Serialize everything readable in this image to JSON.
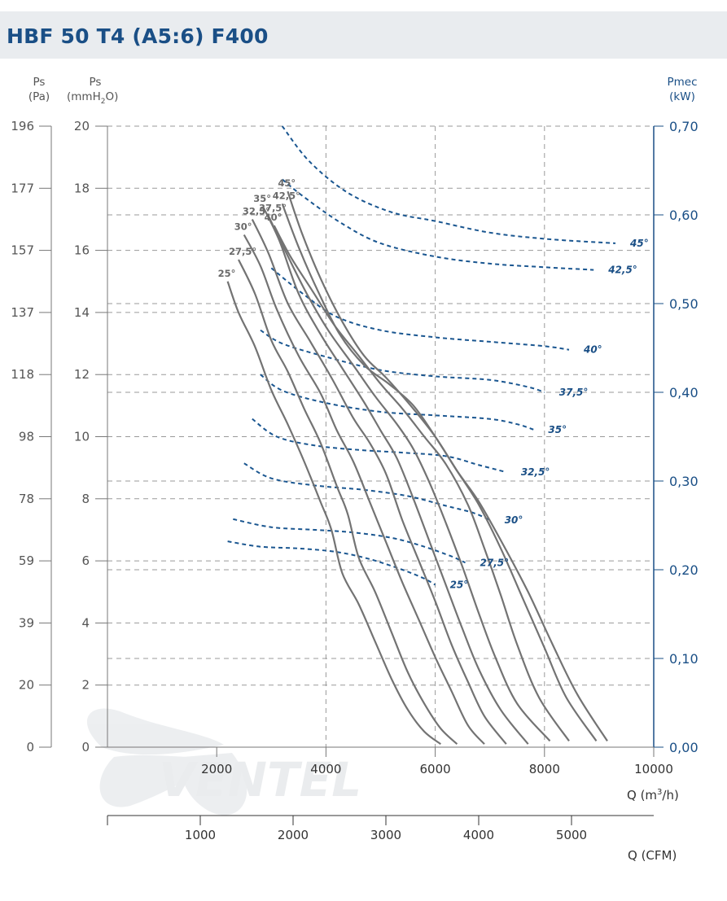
{
  "page": {
    "title": "HBF 50 T4 (A5:6) F400",
    "watermark": "VENTEL"
  },
  "axes": {
    "ps_pa_title": "Ps",
    "ps_pa_unit": "(Pa)",
    "ps_mm_title": "Ps",
    "ps_mm_unit": "(mmH",
    "ps_mm_unit_sub": "2",
    "ps_mm_unit_end": "O)",
    "pmec_title": "Pmec",
    "pmec_unit": "(kW)",
    "q_m3h_label": "Q (m",
    "q_m3h_sup": "3",
    "q_m3h_end": "/h)",
    "q_cfm_label": "Q (CFM)",
    "pa_ticks": [
      "196",
      "177",
      "157",
      "137",
      "118",
      "98",
      "78",
      "59",
      "39",
      "20",
      "0"
    ],
    "mm_ticks": [
      "20",
      "18",
      "16",
      "14",
      "12",
      "10",
      "8",
      "6",
      "4",
      "2",
      "0"
    ],
    "kw_ticks": [
      "0,70",
      "0,60",
      "0,50",
      "0,40",
      "0,30",
      "0,20",
      "0,10",
      "0,00"
    ],
    "m3h_ticks": [
      "2000",
      "4000",
      "6000",
      "8000",
      "10000"
    ],
    "cfm_ticks": [
      "1000",
      "2000",
      "3000",
      "4000",
      "5000"
    ]
  },
  "chart_data": {
    "type": "line",
    "x_unit": "m3/h",
    "xlim": [
      0,
      10000
    ],
    "ylim_mmH2O": [
      0,
      20
    ],
    "y2lim_kW": [
      0,
      0.7
    ],
    "grid": true,
    "pressure_series": [
      {
        "name": "25°",
        "x": [
          2200,
          2400,
          2700,
          3000,
          3300,
          3600,
          3900,
          4100,
          4300,
          4600,
          4900,
          5200,
          5500,
          5800,
          6100
        ],
        "y": [
          15.0,
          14.0,
          12.9,
          11.5,
          10.4,
          9.2,
          7.9,
          7.0,
          5.6,
          4.6,
          3.4,
          2.2,
          1.2,
          0.5,
          0.1
        ]
      },
      {
        "name": "27,5°",
        "x": [
          2400,
          2700,
          3000,
          3300,
          3600,
          3900,
          4200,
          4400,
          4600,
          4900,
          5200,
          5500,
          5800,
          6100,
          6400
        ],
        "y": [
          15.7,
          14.6,
          13.1,
          12.1,
          10.9,
          9.8,
          8.4,
          7.5,
          6.1,
          5.0,
          3.7,
          2.4,
          1.4,
          0.6,
          0.1
        ]
      },
      {
        "name": "30°",
        "x": [
          2500,
          2800,
          3100,
          3500,
          3900,
          4200,
          4500,
          4800,
          5100,
          5400,
          5700,
          6000,
          6300,
          6600,
          6900
        ],
        "y": [
          16.5,
          15.5,
          14.1,
          12.6,
          11.4,
          10.2,
          9.2,
          7.9,
          6.6,
          5.3,
          4.1,
          2.9,
          1.8,
          0.7,
          0.1
        ]
      },
      {
        "name": "32,5°",
        "x": [
          2650,
          2950,
          3300,
          3700,
          4100,
          4500,
          4800,
          5100,
          5400,
          5700,
          6000,
          6300,
          6600,
          6900,
          7300
        ],
        "y": [
          17.0,
          15.9,
          14.3,
          13.1,
          11.9,
          10.6,
          9.8,
          8.8,
          7.3,
          6.0,
          4.7,
          3.3,
          2.1,
          1.0,
          0.1
        ]
      },
      {
        "name": "35°",
        "x": [
          2850,
          3150,
          3500,
          3900,
          4300,
          4700,
          5000,
          5300,
          5600,
          5900,
          6200,
          6500,
          6800,
          7200,
          7700
        ],
        "y": [
          17.4,
          16.3,
          14.6,
          13.3,
          12.2,
          11.1,
          10.2,
          9.3,
          8.0,
          6.6,
          5.2,
          3.8,
          2.5,
          1.2,
          0.1
        ]
      },
      {
        "name": "37,5°",
        "x": [
          2950,
          3250,
          3650,
          4050,
          4500,
          4900,
          5300,
          5600,
          5900,
          6200,
          6500,
          6800,
          7100,
          7500,
          8100
        ],
        "y": [
          17.1,
          16.0,
          14.6,
          13.4,
          12.3,
          11.3,
          10.4,
          9.6,
          8.5,
          7.2,
          5.8,
          4.3,
          2.9,
          1.4,
          0.2
        ]
      },
      {
        "name": "40°",
        "x": [
          3050,
          3350,
          3750,
          4150,
          4600,
          5000,
          5400,
          5800,
          6200,
          6600,
          6900,
          7200,
          7500,
          7900,
          8450
        ],
        "y": [
          16.8,
          15.8,
          14.7,
          13.6,
          12.6,
          11.7,
          10.9,
          10.0,
          9.1,
          7.8,
          6.4,
          4.9,
          3.3,
          1.6,
          0.2
        ]
      },
      {
        "name": "42,5°",
        "x": [
          3200,
          3500,
          3850,
          4250,
          4700,
          5150,
          5600,
          6000,
          6400,
          6800,
          7200,
          7600,
          8000,
          8400,
          8950
        ],
        "y": [
          17.5,
          16.1,
          14.7,
          13.3,
          12.3,
          11.7,
          11.0,
          10.0,
          8.9,
          7.8,
          6.4,
          4.8,
          3.2,
          1.6,
          0.2
        ]
      },
      {
        "name": "45°",
        "x": [
          3300,
          3550,
          3900,
          4300,
          4700,
          5100,
          5550,
          6000,
          6400,
          6800,
          7250,
          7700,
          8150,
          8600,
          9150
        ],
        "y": [
          17.9,
          16.6,
          15.1,
          13.7,
          12.6,
          11.9,
          11.0,
          10.0,
          8.9,
          7.9,
          6.5,
          5.0,
          3.3,
          1.7,
          0.2
        ]
      }
    ],
    "power_series": [
      {
        "name": "45°",
        "x": [
          3200,
          3700,
          4400,
          5200,
          6000,
          7000,
          8000,
          9000,
          9300
        ],
        "y": [
          0.7,
          0.66,
          0.625,
          0.603,
          0.593,
          0.58,
          0.573,
          0.569,
          0.568
        ]
      },
      {
        "name": "42,5°",
        "x": [
          3200,
          3600,
          4300,
          5000,
          6000,
          7000,
          8000,
          8900
        ],
        "y": [
          0.64,
          0.62,
          0.59,
          0.568,
          0.553,
          0.545,
          0.541,
          0.538
        ]
      },
      {
        "name": "40°",
        "x": [
          3000,
          3600,
          4200,
          5000,
          6000,
          7000,
          8000,
          8450
        ],
        "y": [
          0.54,
          0.51,
          0.485,
          0.47,
          0.462,
          0.457,
          0.452,
          0.448
        ]
      },
      {
        "name": "37,5°",
        "x": [
          2800,
          3200,
          4000,
          5000,
          6000,
          7000,
          7700,
          8000
        ],
        "y": [
          0.47,
          0.455,
          0.44,
          0.425,
          0.418,
          0.414,
          0.406,
          0.4
        ]
      },
      {
        "name": "35°",
        "x": [
          2800,
          3200,
          4000,
          5000,
          6000,
          7000,
          7500,
          7800
        ],
        "y": [
          0.42,
          0.402,
          0.388,
          0.378,
          0.374,
          0.37,
          0.364,
          0.358
        ]
      },
      {
        "name": "32,5°",
        "x": [
          2650,
          3100,
          3800,
          4600,
          5400,
          6200,
          6800,
          7300
        ],
        "y": [
          0.37,
          0.35,
          0.34,
          0.335,
          0.332,
          0.328,
          0.318,
          0.31
        ]
      },
      {
        "name": "30°",
        "x": [
          2500,
          3000,
          3800,
          4700,
          5500,
          6200,
          6700,
          7000
        ],
        "y": [
          0.32,
          0.303,
          0.295,
          0.29,
          0.283,
          0.272,
          0.264,
          0.256
        ]
      },
      {
        "name": "27,5°",
        "x": [
          2300,
          3000,
          3800,
          4500,
          5200,
          5800,
          6300,
          6550
        ],
        "y": [
          0.257,
          0.248,
          0.245,
          0.242,
          0.236,
          0.226,
          0.215,
          0.208
        ]
      },
      {
        "name": "25°",
        "x": [
          2200,
          2800,
          3500,
          4200,
          4800,
          5400,
          5800,
          6000
        ],
        "y": [
          0.232,
          0.226,
          0.224,
          0.22,
          0.212,
          0.2,
          0.19,
          0.183
        ]
      }
    ]
  },
  "style": {
    "pressure_color": "#737373",
    "power_color": "#1a5690",
    "accent": "#1a4f86",
    "grid_color": "#9a9a9a"
  }
}
